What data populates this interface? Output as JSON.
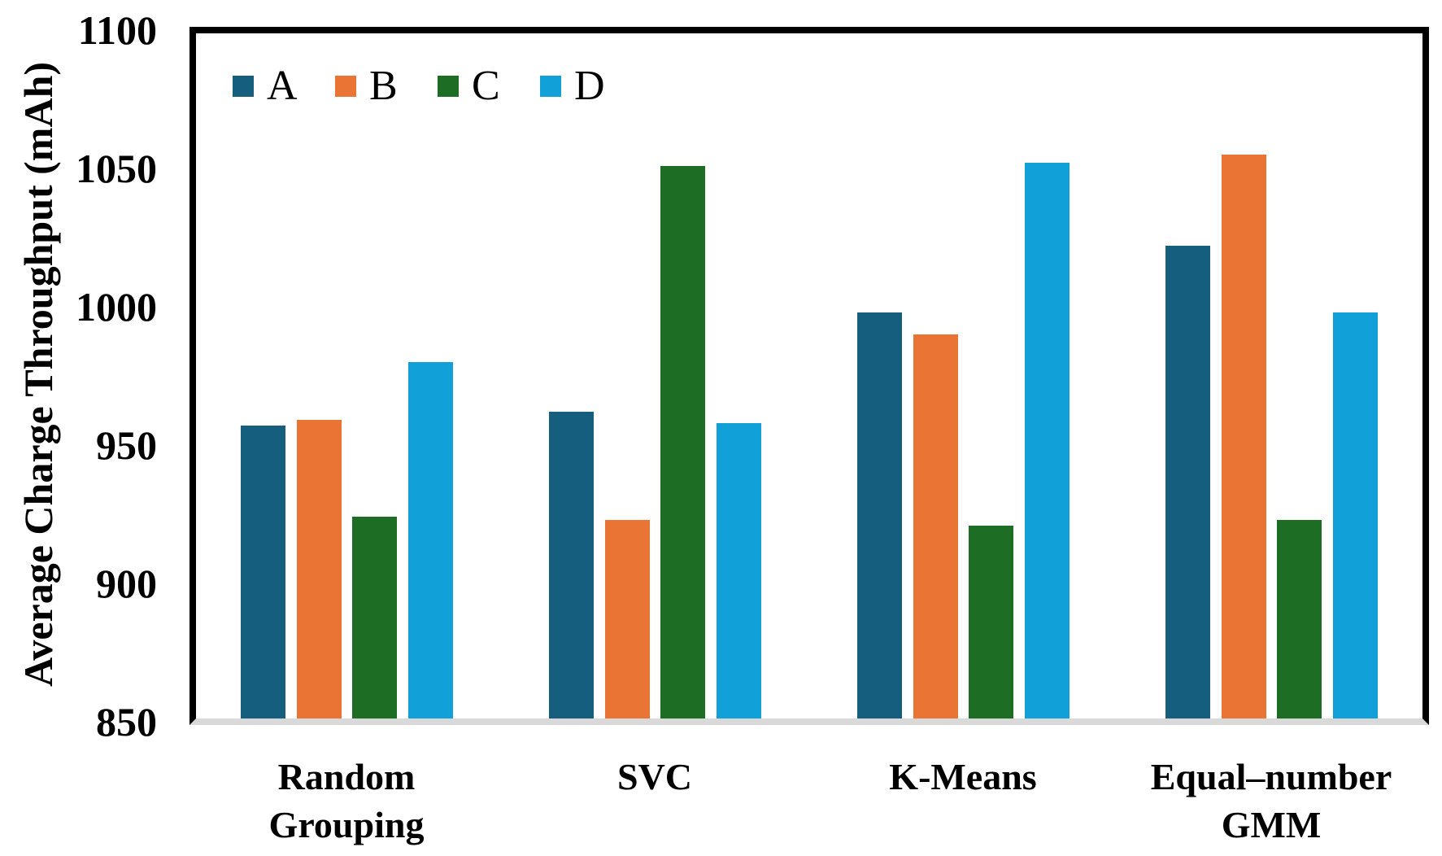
{
  "chart_data": {
    "type": "bar",
    "title": "",
    "xlabel": "",
    "ylabel": "Average Charge Throughput (mAh)",
    "ylim": [
      850,
      1100
    ],
    "yticks": [
      850,
      900,
      950,
      1000,
      1050,
      1100
    ],
    "grid": false,
    "legend_position": "top-left-inside",
    "categories": [
      "Random\nGrouping",
      "SVC",
      "K-Means",
      "Equal–number\nGMM"
    ],
    "series": [
      {
        "name": "A",
        "color": "#165E7E",
        "values": [
          957,
          962,
          998,
          1022
        ]
      },
      {
        "name": "B",
        "color": "#E97434",
        "values": [
          959,
          923,
          990,
          1055
        ]
      },
      {
        "name": "C",
        "color": "#1E6D25",
        "values": [
          924,
          1051,
          921,
          923
        ]
      },
      {
        "name": "D",
        "color": "#12A0D8",
        "values": [
          980,
          958,
          1052,
          998
        ]
      }
    ],
    "axis_color": "#000000",
    "baseline_color": "#D9D9D9",
    "background_color": "#FFFFFF"
  }
}
